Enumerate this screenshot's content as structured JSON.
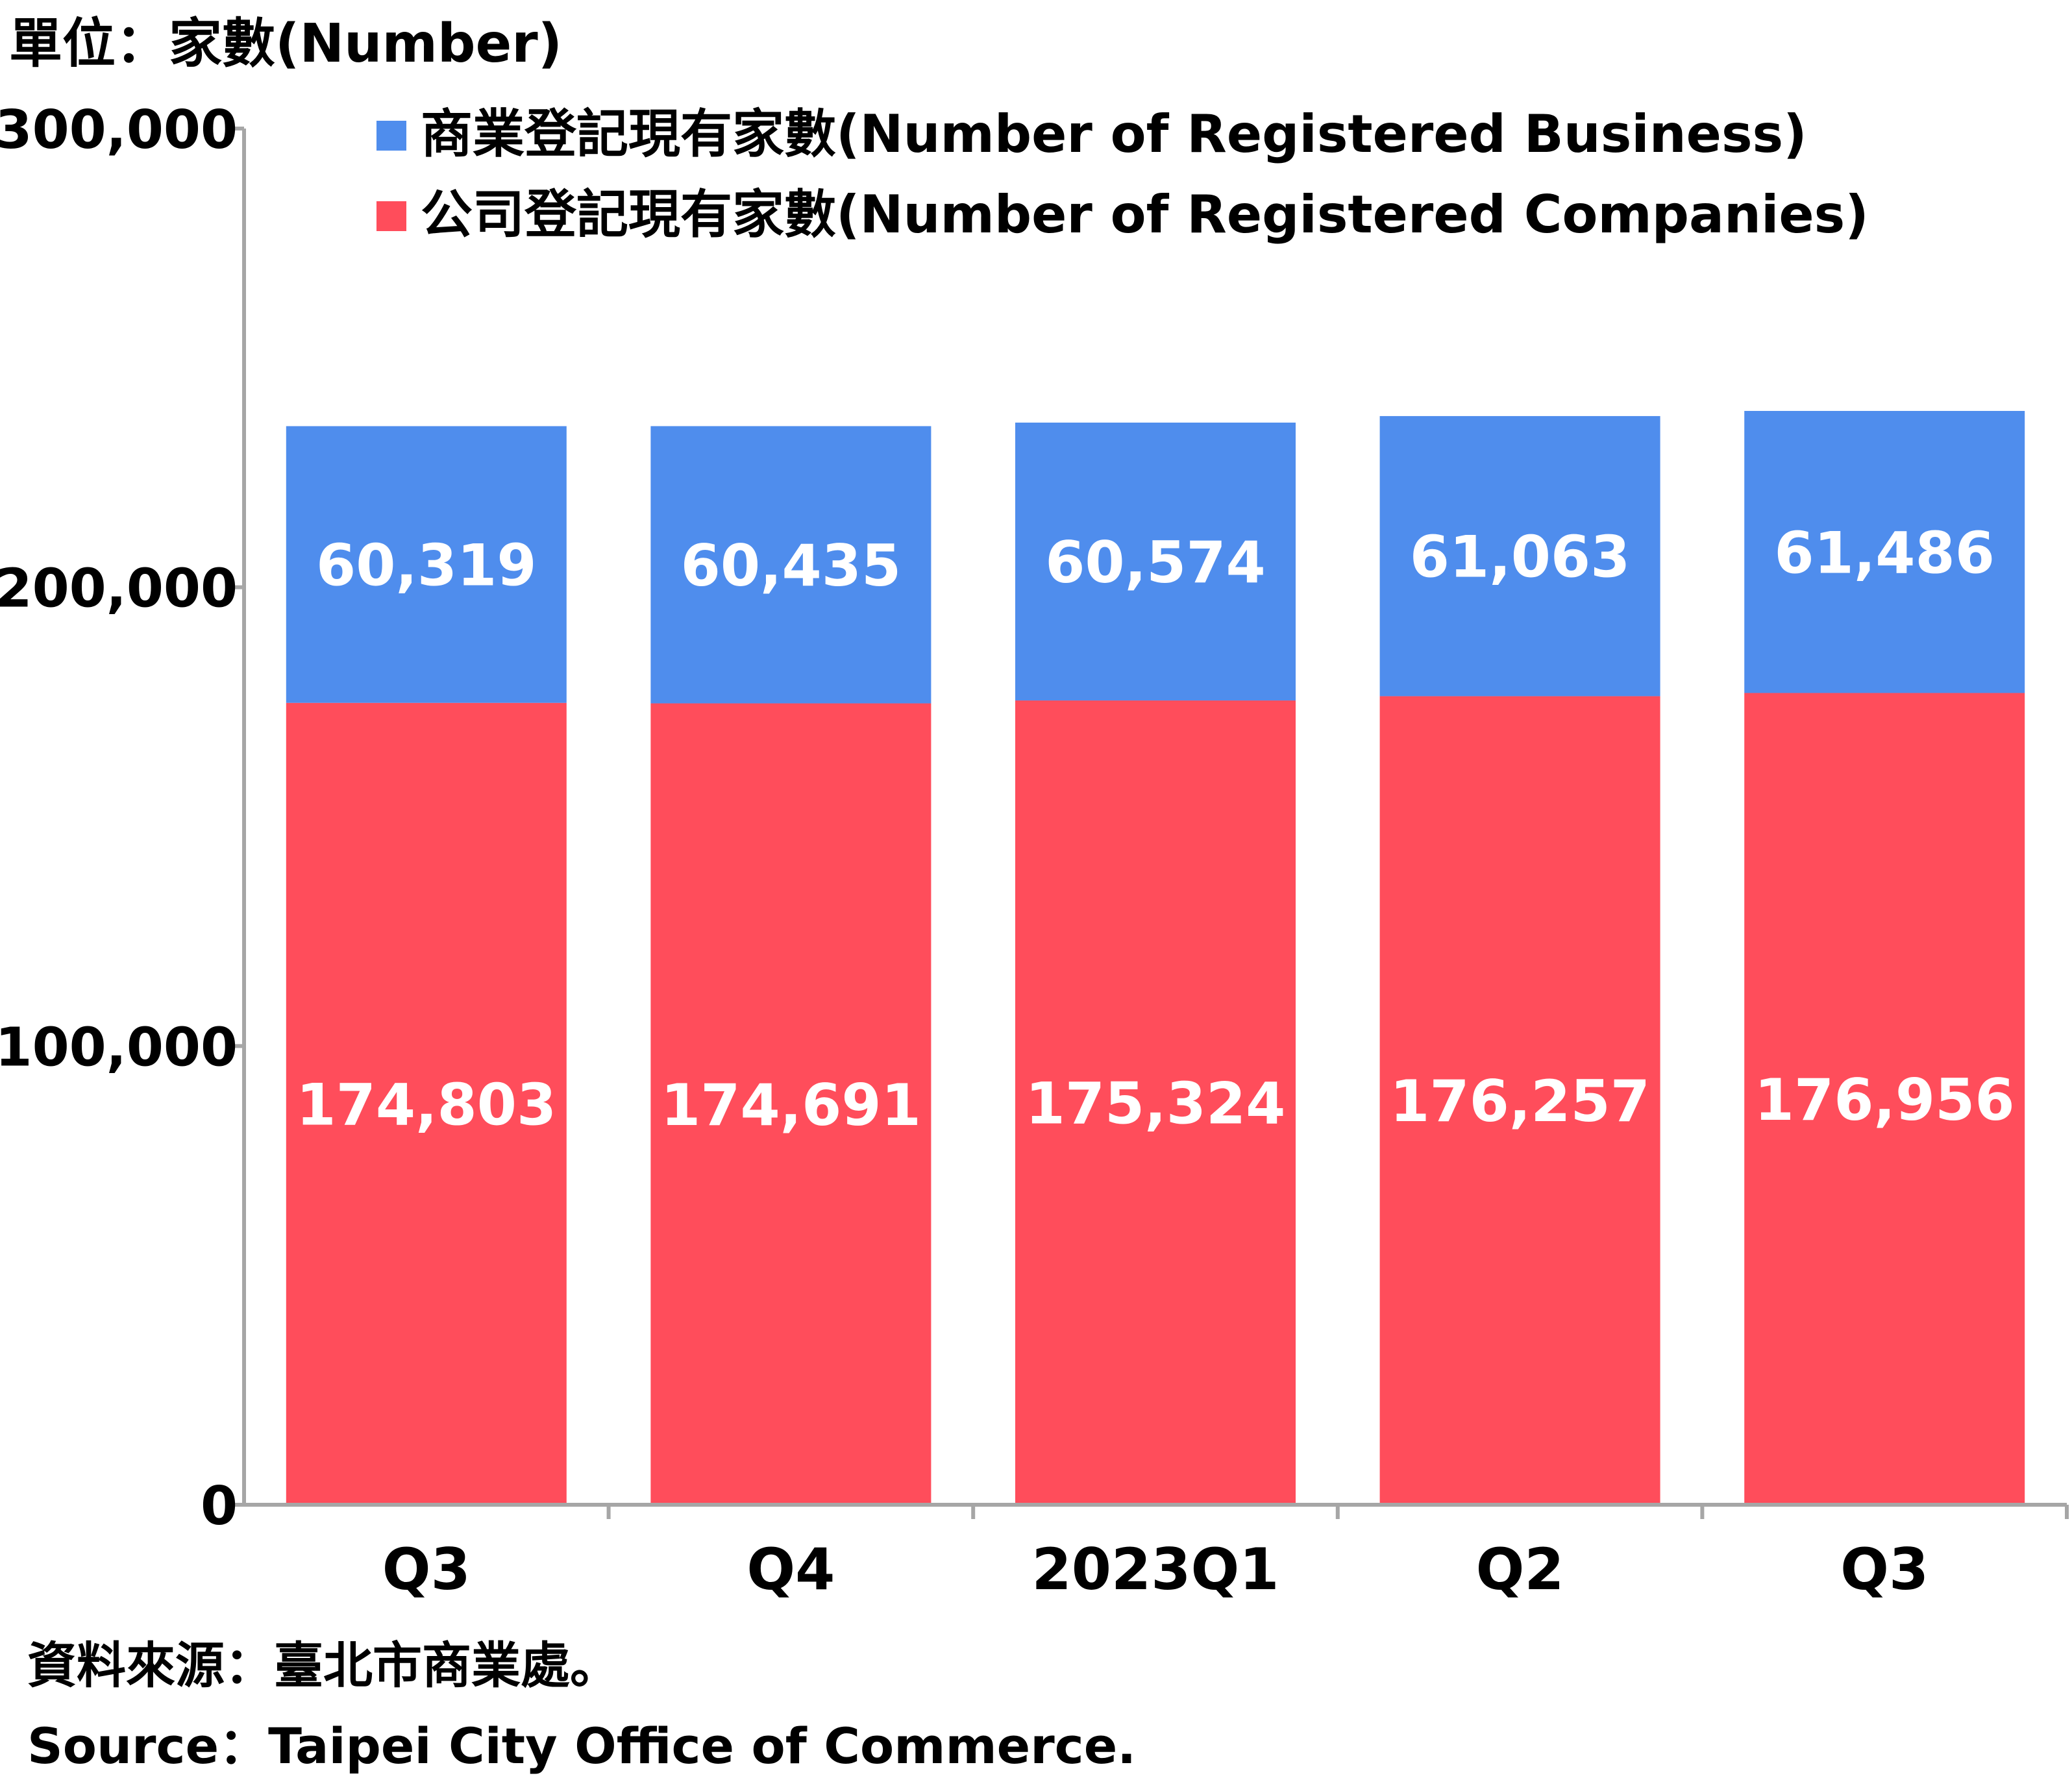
{
  "chart_data": {
    "type": "bar",
    "stacked": true,
    "unit_label": "單位：家數(Number)",
    "categories": [
      "Q3",
      "Q4",
      "2023Q1",
      "Q2",
      "Q3"
    ],
    "series": [
      {
        "name": "公司登記現有家數(Number of Registered Companies)",
        "color": "#ff4d5b",
        "values": [
          174803,
          174691,
          175324,
          176257,
          176956
        ],
        "labels": [
          "174,803",
          "174,691",
          "175,324",
          "176,257",
          "176,956"
        ]
      },
      {
        "name": "商業登記現有家數(Number of Registered Business)",
        "color": "#4f8ded",
        "values": [
          60319,
          60435,
          60574,
          61063,
          61486
        ],
        "labels": [
          "60,319",
          "60,435",
          "60,574",
          "61,063",
          "61,486"
        ]
      }
    ],
    "y_ticks": [
      0,
      100000,
      200000,
      300000
    ],
    "y_tick_labels": [
      "0",
      "100,000",
      "200,000",
      "300,000"
    ],
    "ylim": [
      0,
      300000
    ],
    "grid": false,
    "legend_position": "top",
    "axis_color": "#a6a6a6"
  },
  "source": {
    "zh": "資料來源：臺北市商業處。",
    "en": "Source：Taipei City Office of Commerce."
  }
}
